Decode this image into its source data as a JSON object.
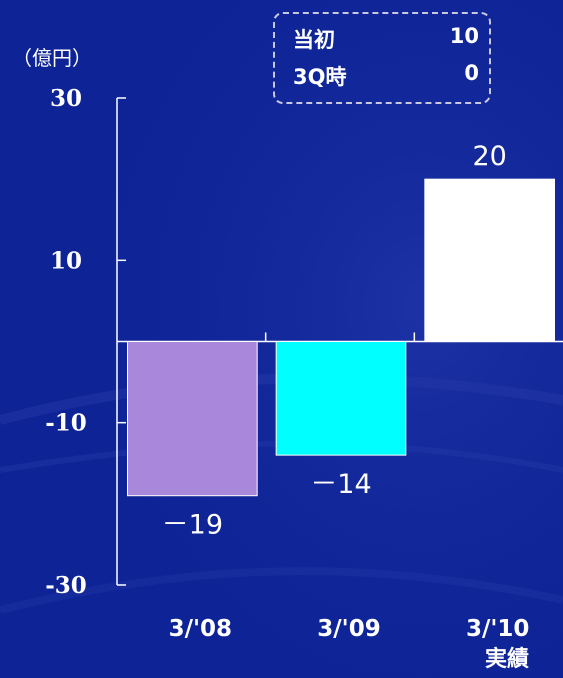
{
  "unit_label": "（億円）",
  "legend": {
    "rows": [
      {
        "label": "当初",
        "value": "10"
      },
      {
        "label": "3Q時",
        "value": "0"
      }
    ]
  },
  "chart_data": {
    "type": "bar",
    "categories": [
      "3/'08",
      "3/'09",
      "3/'10"
    ],
    "values": [
      -19,
      -14,
      20
    ],
    "value_labels": [
      "－19",
      "－14",
      "20"
    ],
    "bar_colors": [
      "#a987db",
      "#00ffff",
      "#ffffff"
    ],
    "ylim": [
      -30,
      30
    ],
    "yticks": [
      30,
      10,
      -10,
      -30
    ],
    "ytick_labels": [
      "30",
      "10",
      "-10",
      "-30"
    ],
    "category_sublabels": [
      "",
      "",
      "実績"
    ],
    "grid": false,
    "legend": "none"
  }
}
